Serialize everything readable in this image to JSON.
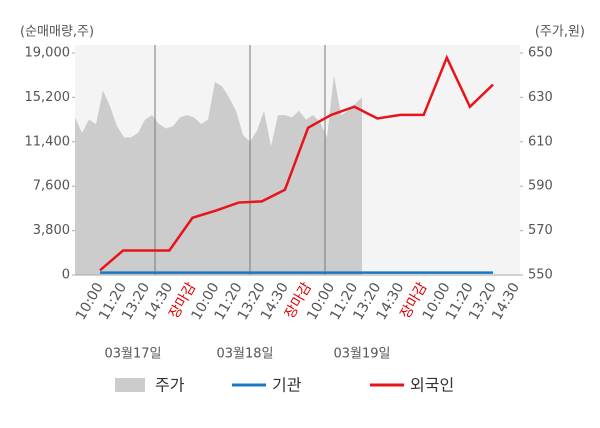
{
  "chart_data": {
    "type": "combo",
    "y_label": "(순매매량,주)",
    "y2_label": "(주가,원)",
    "categories": [
      "10:00",
      "11:20",
      "13:20",
      "14:30",
      "장마감",
      "10:00",
      "11:20",
      "13:20",
      "14:30",
      "장마감",
      "10:00",
      "11:20",
      "13:20",
      "14:30",
      "장마감",
      "10:00",
      "11:20",
      "13:20",
      "14:30"
    ],
    "highlight_label": "장마감",
    "highlight_color": "#e00000",
    "date_labels": [
      "03월17일",
      "03월18일",
      "03월19일"
    ],
    "ylim": [
      0,
      19000
    ],
    "yticks": [
      0,
      {
        "value": 3800,
        "label": "3,800"
      },
      {
        "value": 7600,
        "label": "7,600"
      },
      {
        "value": 11400,
        "label": "11,400"
      },
      {
        "value": 15200,
        "label": "15,200"
      },
      {
        "value": 19000,
        "label": "19,000"
      }
    ],
    "y2lim": [
      550,
      650
    ],
    "y2ticks": [
      550,
      570,
      590,
      610,
      630,
      650
    ],
    "price": {
      "name": "주가",
      "color": "#cccccc",
      "axis": "y2",
      "values": [
        621,
        614,
        620,
        618,
        633,
        626,
        617,
        612,
        612,
        614,
        620,
        622,
        618,
        616,
        617,
        621,
        622,
        621,
        618,
        620,
        637,
        635,
        630,
        624,
        613,
        610,
        615,
        624,
        608,
        622,
        622,
        621,
        624,
        620,
        622,
        619,
        612,
        640,
        622,
        624,
        627,
        630
      ]
    },
    "series": [
      {
        "name": "기관",
        "color": "#1a78c2",
        "values": [
          200,
          200,
          200,
          200,
          200,
          200,
          200,
          200,
          200,
          200,
          200,
          200,
          200,
          200,
          200,
          200,
          200,
          200,
          null
        ]
      },
      {
        "name": "외국인",
        "color": "#e8141c",
        "values": [
          400,
          2100,
          2100,
          2100,
          4900,
          5500,
          6200,
          6300,
          7300,
          12600,
          13700,
          14400,
          13400,
          13700,
          13700,
          18600,
          14400,
          16300,
          null
        ]
      }
    ]
  }
}
